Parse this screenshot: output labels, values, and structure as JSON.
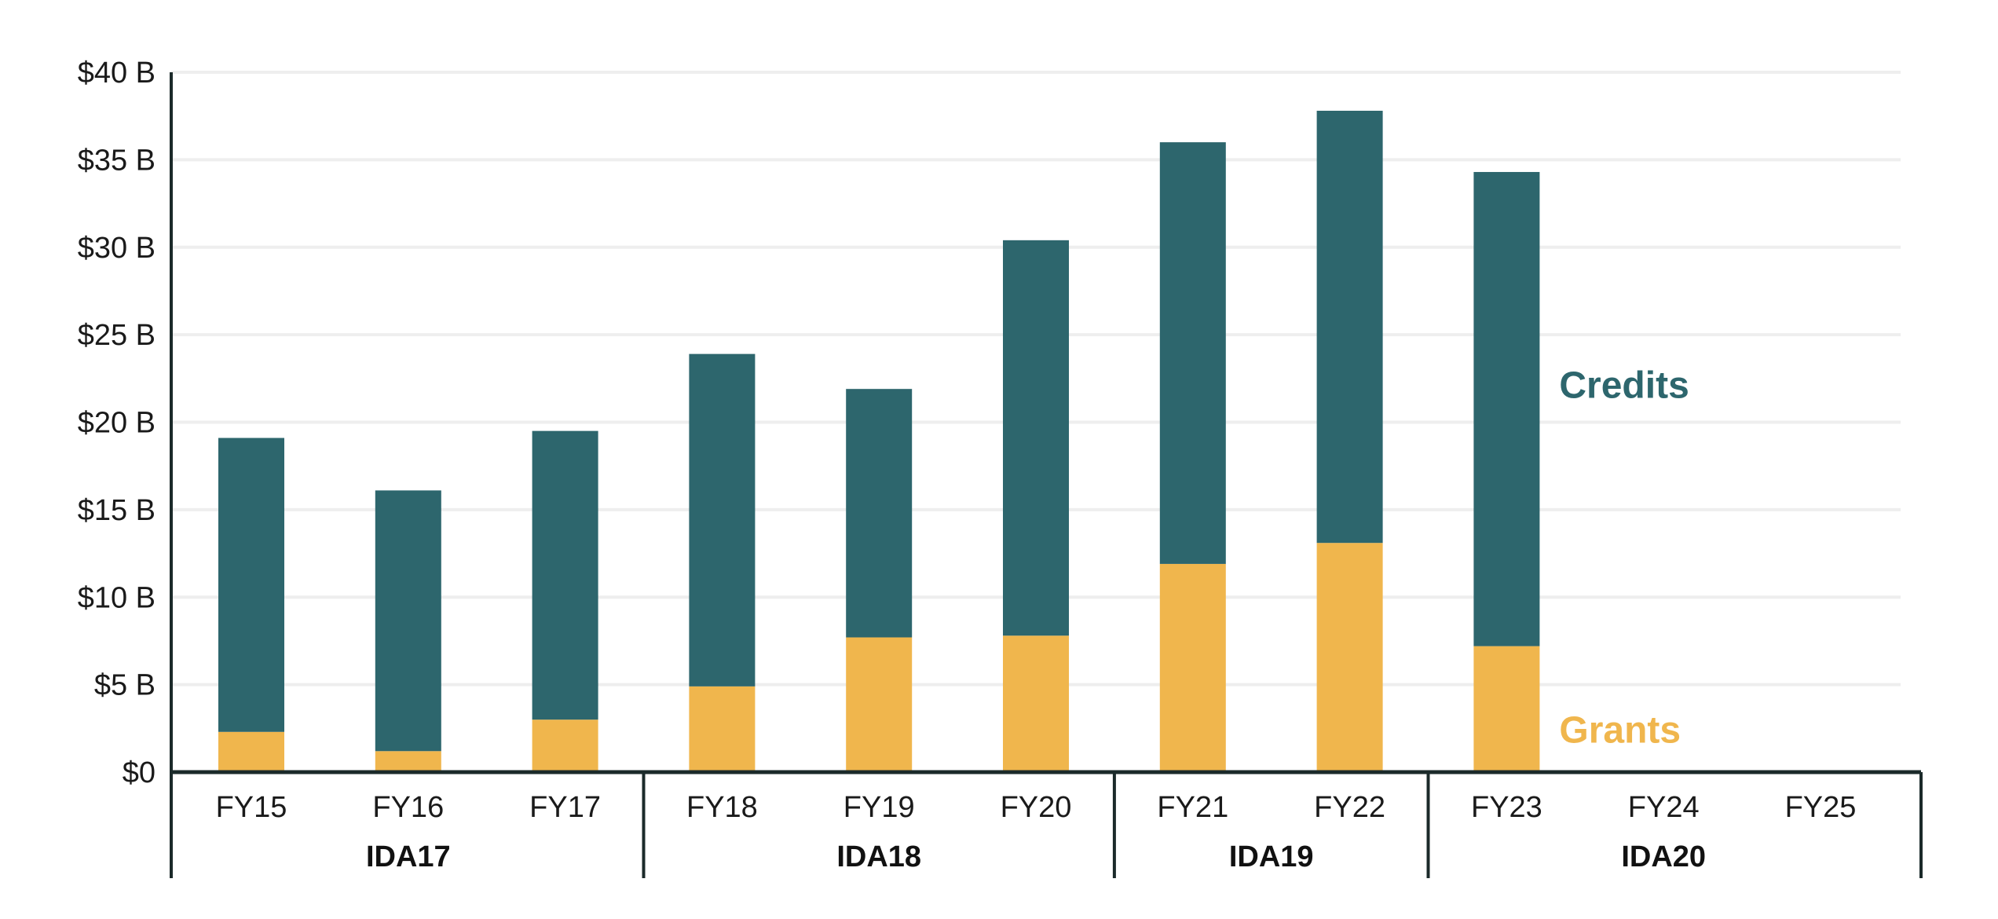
{
  "chart_data": {
    "type": "bar",
    "stacked": true,
    "categories": [
      "FY15",
      "FY16",
      "FY17",
      "FY18",
      "FY19",
      "FY20",
      "FY21",
      "FY22",
      "FY23",
      "FY24",
      "FY25"
    ],
    "groups": [
      {
        "label": "IDA17",
        "categories": [
          "FY15",
          "FY16",
          "FY17"
        ]
      },
      {
        "label": "IDA18",
        "categories": [
          "FY18",
          "FY19",
          "FY20"
        ]
      },
      {
        "label": "IDA19",
        "categories": [
          "FY21",
          "FY22"
        ]
      },
      {
        "label": "IDA20",
        "categories": [
          "FY23",
          "FY24",
          "FY25"
        ]
      }
    ],
    "series": [
      {
        "name": "Grants",
        "color": "#F0B64D",
        "values": [
          2.3,
          1.2,
          3.0,
          4.9,
          7.7,
          7.8,
          11.9,
          13.1,
          7.2,
          null,
          null
        ]
      },
      {
        "name": "Credits",
        "color": "#2D666D",
        "values": [
          16.8,
          14.9,
          16.5,
          19.0,
          14.2,
          22.6,
          24.1,
          24.7,
          27.1,
          null,
          null
        ]
      }
    ],
    "yticks": [
      "$0",
      "$5 B",
      "$10 B",
      "$15 B",
      "$20 B",
      "$25 B",
      "$30 B",
      "$35 B",
      "$40 B"
    ],
    "ylim": [
      0,
      40
    ],
    "grid": true,
    "legend": "inline-right"
  }
}
